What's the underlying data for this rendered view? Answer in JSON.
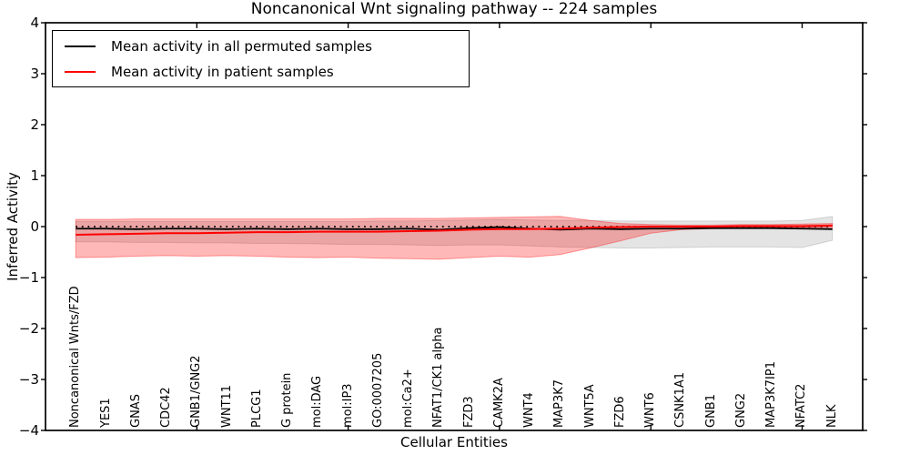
{
  "chart_data": {
    "type": "line",
    "title": "Noncanonical Wnt signaling pathway -- 224 samples",
    "xlabel": "Cellular Entities",
    "ylabel": "Inferred Activity",
    "ylim": [
      -4,
      4
    ],
    "ytick_values": [
      4,
      3,
      2,
      1,
      0,
      -1,
      -2,
      -3,
      -4
    ],
    "ytick_labels": [
      "4",
      "3",
      "2",
      "1",
      "0",
      "−1",
      "−2",
      "−3",
      "−4"
    ],
    "xtick_mark_positions": [
      4,
      9,
      14,
      19,
      24
    ],
    "grid": false,
    "legend_position": "upper left",
    "categories": [
      "Noncanonical Wnts/FZD",
      "YES1",
      "GNAS",
      "CDC42",
      "GNB1/GNG2",
      "WNT11",
      "PLCG1",
      "G protein",
      "mol:DAG",
      "mol:IP3",
      "GO:0007205",
      "mol:Ca2+",
      "NFAT1/CK1 alpha",
      "FZD3",
      "CAMK2A",
      "WNT4",
      "MAP3K7",
      "WNT5A",
      "FZD6",
      "WNT6",
      "CSNK1A1",
      "GNB1",
      "GNG2",
      "MAP3K7IP1",
      "NFATC2",
      "NLK"
    ],
    "series": [
      {
        "name": "Mean activity in all permuted samples",
        "color": "#000000",
        "width": 1.8,
        "values": [
          -0.04,
          -0.04,
          -0.05,
          -0.04,
          -0.04,
          -0.05,
          -0.04,
          -0.05,
          -0.04,
          -0.05,
          -0.05,
          -0.04,
          -0.06,
          -0.03,
          -0.01,
          -0.04,
          -0.06,
          -0.04,
          -0.05,
          -0.04,
          -0.04,
          -0.03,
          -0.03,
          -0.03,
          -0.04,
          -0.05
        ]
      },
      {
        "name": "Mean activity in patient samples",
        "color": "#ff0000",
        "width": 2.0,
        "values": [
          -0.16,
          -0.15,
          -0.14,
          -0.13,
          -0.13,
          -0.12,
          -0.11,
          -0.11,
          -0.1,
          -0.1,
          -0.1,
          -0.09,
          -0.08,
          -0.06,
          -0.05,
          -0.05,
          -0.04,
          -0.02,
          -0.01,
          0.0,
          0.0,
          0.0,
          0.01,
          0.01,
          0.01,
          0.02
        ]
      }
    ],
    "reference_line": {
      "y": 0,
      "color": "#000000",
      "style": "dotted"
    },
    "bands": [
      {
        "name": "permuted-samples-range",
        "color": "#555555",
        "opacity": 0.16,
        "upper": [
          0.1,
          0.1,
          0.1,
          0.1,
          0.1,
          0.1,
          0.1,
          0.1,
          0.1,
          0.1,
          0.11,
          0.11,
          0.12,
          0.13,
          0.14,
          0.13,
          0.12,
          0.12,
          0.11,
          0.11,
          0.11,
          0.11,
          0.11,
          0.11,
          0.12,
          0.2
        ],
        "lower": [
          -0.3,
          -0.3,
          -0.31,
          -0.31,
          -0.32,
          -0.32,
          -0.33,
          -0.33,
          -0.34,
          -0.35,
          -0.35,
          -0.36,
          -0.37,
          -0.36,
          -0.36,
          -0.38,
          -0.4,
          -0.41,
          -0.42,
          -0.42,
          -0.41,
          -0.4,
          -0.4,
          -0.4,
          -0.41,
          -0.27
        ]
      },
      {
        "name": "patient-samples-range",
        "color": "#ff0000",
        "opacity": 0.28,
        "upper": [
          0.14,
          0.14,
          0.15,
          0.15,
          0.15,
          0.15,
          0.15,
          0.15,
          0.15,
          0.15,
          0.16,
          0.16,
          0.16,
          0.17,
          0.18,
          0.19,
          0.2,
          0.12,
          0.06,
          0.04,
          0.03,
          0.03,
          0.04,
          0.04,
          0.05,
          0.06
        ],
        "lower": [
          -0.61,
          -0.6,
          -0.58,
          -0.57,
          -0.58,
          -0.57,
          -0.58,
          -0.6,
          -0.61,
          -0.6,
          -0.62,
          -0.63,
          -0.64,
          -0.61,
          -0.58,
          -0.6,
          -0.55,
          -0.42,
          -0.28,
          -0.13,
          -0.06,
          -0.04,
          -0.03,
          -0.02,
          -0.02,
          -0.02
        ]
      }
    ]
  }
}
